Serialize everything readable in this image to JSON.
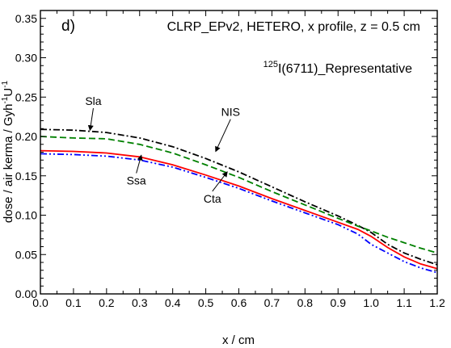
{
  "chart_data": {
    "type": "line",
    "panel_label": "d)",
    "title": "CLRP_EPv2, HETERO, x profile, z = 0.5 cm",
    "source_label": {
      "superscript": "125",
      "text": "I(6711)_Representative"
    },
    "xlabel": "x / cm",
    "ylabel": {
      "main": "dose / air kerma / Gyh",
      "sup1": "-1",
      "mid": "U",
      "sup2": "-1"
    },
    "xlim": [
      0.0,
      1.2
    ],
    "ylim": [
      0.0,
      0.36
    ],
    "x_ticks": [
      "0.0",
      "0.1",
      "0.2",
      "0.3",
      "0.4",
      "0.5",
      "0.6",
      "0.7",
      "0.8",
      "0.9",
      "1.0",
      "1.1",
      "1.2"
    ],
    "y_ticks": [
      "0.00",
      "0.05",
      "0.10",
      "0.15",
      "0.20",
      "0.25",
      "0.30",
      "0.35"
    ],
    "grid": false,
    "series": [
      {
        "name": "Sla",
        "color": "#000000",
        "dash": "dashdot",
        "x": [
          0.0,
          0.1,
          0.2,
          0.3,
          0.4,
          0.5,
          0.6,
          0.7,
          0.8,
          0.9,
          0.96,
          1.0,
          1.05,
          1.1,
          1.15,
          1.2
        ],
        "y": [
          0.209,
          0.208,
          0.205,
          0.198,
          0.187,
          0.172,
          0.155,
          0.136,
          0.117,
          0.099,
          0.087,
          0.078,
          0.063,
          0.052,
          0.044,
          0.037
        ]
      },
      {
        "name": "NIS",
        "color": "#008000",
        "dash": "dashed",
        "x": [
          0.0,
          0.1,
          0.2,
          0.3,
          0.4,
          0.5,
          0.6,
          0.7,
          0.8,
          0.9,
          0.96,
          1.0,
          1.05,
          1.1,
          1.15,
          1.2
        ],
        "y": [
          0.2,
          0.198,
          0.197,
          0.19,
          0.179,
          0.164,
          0.148,
          0.13,
          0.113,
          0.096,
          0.086,
          0.08,
          0.072,
          0.065,
          0.058,
          0.052
        ]
      },
      {
        "name": "Ssa",
        "color": "#ff0000",
        "dash": "solid",
        "x": [
          0.0,
          0.1,
          0.2,
          0.3,
          0.4,
          0.5,
          0.6,
          0.7,
          0.8,
          0.9,
          0.96,
          1.0,
          1.05,
          1.1,
          1.15,
          1.2
        ],
        "y": [
          0.182,
          0.181,
          0.179,
          0.174,
          0.164,
          0.151,
          0.137,
          0.121,
          0.106,
          0.091,
          0.082,
          0.073,
          0.059,
          0.047,
          0.038,
          0.032
        ]
      },
      {
        "name": "Cta",
        "color": "#0000ff",
        "dash": "dashdotdot",
        "x": [
          0.0,
          0.1,
          0.2,
          0.3,
          0.4,
          0.5,
          0.6,
          0.7,
          0.8,
          0.9,
          0.96,
          1.0,
          1.05,
          1.1,
          1.15,
          1.2
        ],
        "y": [
          0.178,
          0.177,
          0.175,
          0.17,
          0.161,
          0.148,
          0.134,
          0.118,
          0.103,
          0.088,
          0.076,
          0.063,
          0.052,
          0.041,
          0.033,
          0.027
        ]
      }
    ],
    "annotations": [
      {
        "text": "Sla",
        "label_at": [
          0.16,
          0.24
        ],
        "arrow_to": [
          0.15,
          0.208
        ],
        "series": "Sla"
      },
      {
        "text": "NIS",
        "label_at": [
          0.575,
          0.226
        ],
        "arrow_to": [
          0.53,
          0.181
        ],
        "series": "NIS"
      },
      {
        "text": "Ssa",
        "label_at": [
          0.29,
          0.139
        ],
        "arrow_to": [
          0.305,
          0.176
        ],
        "series": "Ssa"
      },
      {
        "text": "Cta",
        "label_at": [
          0.52,
          0.116
        ],
        "arrow_to": [
          0.565,
          0.155
        ],
        "series": "Cta"
      }
    ]
  }
}
